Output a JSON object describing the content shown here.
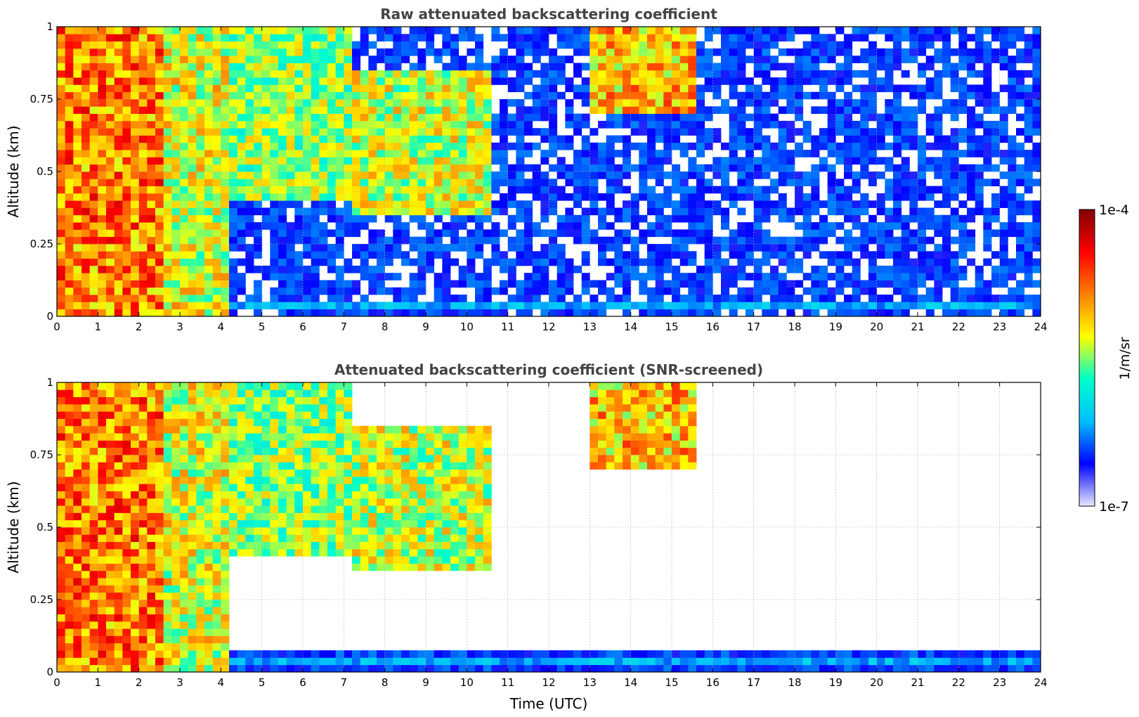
{
  "chart_data": [
    {
      "type": "heatmap",
      "title": "Raw attenuated backscattering coefficient",
      "xlabel": "",
      "ylabel": "Altitude (km)",
      "xlim": [
        0,
        24
      ],
      "ylim": [
        0,
        1
      ],
      "x_ticks": [
        "0",
        "1",
        "2",
        "3",
        "4",
        "5",
        "6",
        "7",
        "8",
        "9",
        "10",
        "11",
        "12",
        "13",
        "14",
        "15",
        "16",
        "17",
        "18",
        "19",
        "20",
        "21",
        "22",
        "23",
        "24"
      ],
      "y_ticks": [
        {
          "value": 0,
          "label": "0"
        },
        {
          "value": 0.25,
          "label": "0.25"
        },
        {
          "value": 0.5,
          "label": "0.5"
        },
        {
          "value": 0.75,
          "label": "0.75"
        },
        {
          "value": 1,
          "label": "1"
        }
      ],
      "grid": true,
      "screened": false,
      "features": [
        {
          "x0": 0.0,
          "x1": 2.6,
          "y0": 0.0,
          "y1": 1.0,
          "level": 0.78
        },
        {
          "x0": 2.6,
          "x1": 4.2,
          "y0": 0.0,
          "y1": 1.0,
          "level": 0.62
        },
        {
          "x0": 4.2,
          "x1": 7.3,
          "y0": 0.4,
          "y1": 1.0,
          "level": 0.55
        },
        {
          "x0": 7.3,
          "x1": 10.5,
          "y0": 0.35,
          "y1": 0.85,
          "level": 0.6
        },
        {
          "x0": 13.0,
          "x1": 15.7,
          "y0": 0.7,
          "y1": 1.0,
          "level": 0.7
        },
        {
          "x0": 0.0,
          "x1": 24.0,
          "y0": 0.02,
          "y1": 0.06,
          "level": 0.3
        }
      ]
    },
    {
      "type": "heatmap",
      "title": "Attenuated backscattering coefficient (SNR-screened)",
      "xlabel": "Time (UTC)",
      "ylabel": "Altitude (km)",
      "xlim": [
        0,
        24
      ],
      "ylim": [
        0,
        1
      ],
      "x_ticks": [
        "0",
        "1",
        "2",
        "3",
        "4",
        "5",
        "6",
        "7",
        "8",
        "9",
        "10",
        "11",
        "12",
        "13",
        "14",
        "15",
        "16",
        "17",
        "18",
        "19",
        "20",
        "21",
        "22",
        "23",
        "24"
      ],
      "y_ticks": [
        {
          "value": 0,
          "label": "0"
        },
        {
          "value": 0.25,
          "label": "0.25"
        },
        {
          "value": 0.5,
          "label": "0.5"
        },
        {
          "value": 0.75,
          "label": "0.75"
        },
        {
          "value": 1,
          "label": "1"
        }
      ],
      "grid": true,
      "screened": true,
      "features": [
        {
          "x0": 0.0,
          "x1": 2.6,
          "y0": 0.0,
          "y1": 1.0,
          "level": 0.78
        },
        {
          "x0": 2.6,
          "x1": 4.2,
          "y0": 0.0,
          "y1": 1.0,
          "level": 0.62
        },
        {
          "x0": 4.2,
          "x1": 7.3,
          "y0": 0.4,
          "y1": 1.0,
          "level": 0.55
        },
        {
          "x0": 7.3,
          "x1": 10.5,
          "y0": 0.35,
          "y1": 0.85,
          "level": 0.6
        },
        {
          "x0": 13.0,
          "x1": 15.7,
          "y0": 0.7,
          "y1": 1.0,
          "level": 0.7
        },
        {
          "x0": 0.0,
          "x1": 24.0,
          "y0": 0.02,
          "y1": 0.06,
          "level": 0.3
        }
      ]
    }
  ],
  "colorbar": {
    "label": "1/m/sr",
    "max_label": "1e-4",
    "min_label": "1e-7",
    "colormap": "jet",
    "colors": [
      "#e8e8ff",
      "#0000ff",
      "#00bfff",
      "#00ffcc",
      "#ffff00",
      "#ff8000",
      "#ff0000",
      "#800000"
    ]
  }
}
